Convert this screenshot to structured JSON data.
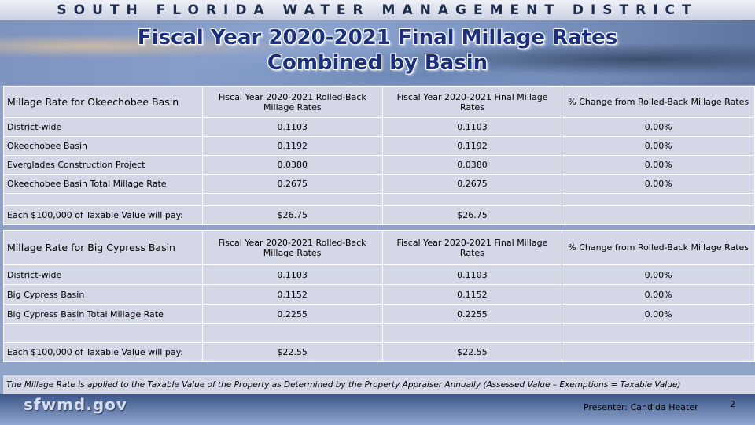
{
  "header": {
    "banner": "SOUTH FLORIDA WATER MANAGEMENT DISTRICT",
    "title_line1": "Fiscal Year 2020-2021 Final Millage Rates",
    "title_line2": "Combined by Basin"
  },
  "okeechobee": {
    "columns": [
      "Millage Rate for Okeechobee Basin",
      "Fiscal Year 2020-2021 Rolled-Back Millage Rates",
      "Fiscal Year 2020-2021 Final Millage Rates",
      "% Change from Rolled-Back Millage Rates"
    ],
    "rows": [
      [
        "District-wide",
        "0.1103",
        "0.1103",
        "0.00%"
      ],
      [
        "Okeechobee Basin",
        "0.1192",
        "0.1192",
        "0.00%"
      ],
      [
        "Everglades Construction Project",
        "0.0380",
        "0.0380",
        "0.00%"
      ],
      [
        "Okeechobee Basin Total Millage Rate",
        "0.2675",
        "0.2675",
        "0.00%"
      ]
    ],
    "pay": [
      "Each $100,000 of Taxable Value will pay:",
      "$26.75",
      "$26.75",
      ""
    ]
  },
  "big_cypress": {
    "columns": [
      "Millage Rate for Big Cypress Basin",
      "Fiscal Year 2020-2021 Rolled-Back Millage Rates",
      "Fiscal Year 2020-2021 Final Millage Rates",
      "% Change from Rolled-Back Millage Rates"
    ],
    "rows": [
      [
        "District-wide",
        "0.1103",
        "0.1103",
        "0.00%"
      ],
      [
        "Big Cypress Basin",
        "0.1152",
        "0.1152",
        "0.00%"
      ],
      [
        "Big Cypress Basin Total Millage Rate",
        "0.2255",
        "0.2255",
        "0.00%"
      ]
    ],
    "pay": [
      "Each $100,000 of Taxable Value will pay:",
      "$22.55",
      "$22.55",
      ""
    ]
  },
  "footnote": "The Millage Rate is applied to the Taxable Value of the Property as Determined by the Property Appraiser Annually (Assessed Value – Exemptions = Taxable Value)",
  "footer": {
    "logo": "sfwmd.gov",
    "presenter": "Presenter: Candida Heater",
    "page_number": "2"
  }
}
